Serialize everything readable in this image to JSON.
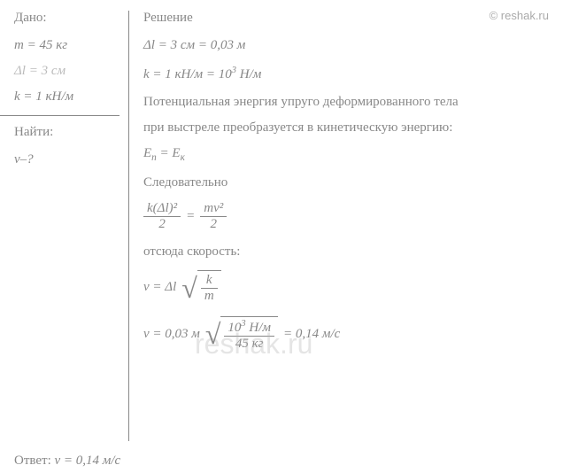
{
  "watermark_top": "© reshak.ru",
  "watermark_center": "reshak.ru",
  "left": {
    "given_label": "Дано:",
    "m_line": "m = 45 кг",
    "dl_line": "Δl = 3 см",
    "k_line": "k = 1 кН/м",
    "find_label": "Найти:",
    "find_var": "v–?"
  },
  "right": {
    "solution_label": "Решение",
    "dl_conv": "Δl = 3 см = 0,03 м",
    "k_conv_prefix": "k = 1 кН/м = 10",
    "k_conv_exp": "3",
    "k_conv_suffix": " Н/м",
    "text1": "Потенциальная энергия упруго деформированного тела",
    "text2": "при выстреле преобразуется в кинетическую энергию:",
    "energy_eq_left": "E",
    "energy_eq_left_sub": "п",
    "energy_eq_right": "E",
    "energy_eq_right_sub": "к",
    "conseq": "Следовательно",
    "frac1_num": "k(Δl)²",
    "frac1_den": "2",
    "frac2_num": "mv²",
    "frac2_den": "2",
    "hence": "отсюда скорость:",
    "v_eq_prefix": "v = Δl",
    "sqrt1_num": "k",
    "sqrt1_den": "m",
    "v_num_prefix": "v = 0,03 м",
    "sqrt2_num_a": "10",
    "sqrt2_num_exp": "3",
    "sqrt2_num_b": " Н/м",
    "sqrt2_den": "45 кг",
    "v_result": "= 0,14 м/с"
  },
  "answer_label": "Ответ: ",
  "answer_value": "v = 0,14 м/с",
  "colors": {
    "text": "#888888",
    "bg": "#ffffff",
    "border": "#888888"
  }
}
